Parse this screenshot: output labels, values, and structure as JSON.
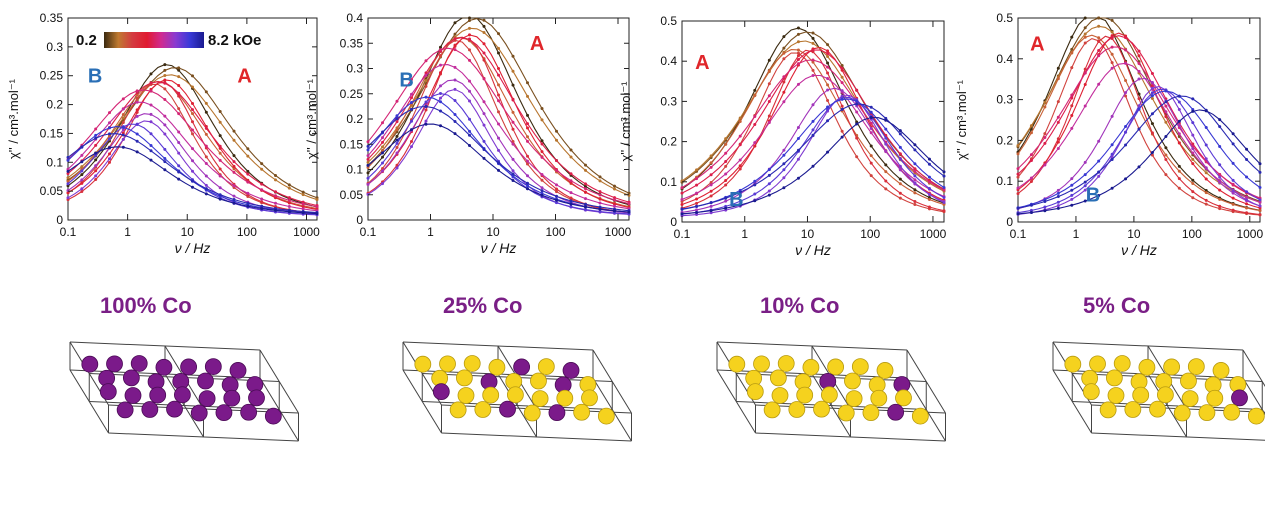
{
  "colorbar": {
    "min_label": "0.2",
    "max_label": "8.2 kOe",
    "gradient": [
      "#3a2a10",
      "#c07a30",
      "#d43a40",
      "#e01a30",
      "#d02a90",
      "#8a3ad0",
      "#3a3ad8",
      "#1a1a90"
    ]
  },
  "label_colors": {
    "A": "#e0262a",
    "B": "#2a6fb6",
    "title": "#7a1f86",
    "co": "#7b1a8a",
    "y": "#f5d21e"
  },
  "xlabel": "ν / Hz",
  "ylabel": "χ'' / cm³.mol⁻¹",
  "chart_data": [
    {
      "type": "line",
      "xlim": [
        0.1,
        1500
      ],
      "xscale": "log",
      "xticks": [
        "0.1",
        "1",
        "10",
        "100",
        "1000"
      ],
      "ylim": [
        0,
        0.35
      ],
      "yticks": [
        "0",
        "0.05",
        "0.1",
        "0.15",
        "0.2",
        "0.25",
        "0.3",
        "0.35"
      ],
      "annotations": {
        "A": "A",
        "B": "B"
      },
      "peak_A": {
        "x": 4.5,
        "y": 0.25
      },
      "peak_B": {
        "x": 0.55,
        "y": 0.22
      },
      "n_curves": 16
    },
    {
      "type": "line",
      "xlim": [
        0.1,
        1500
      ],
      "xscale": "log",
      "xticks": [
        "0.1",
        "1",
        "10",
        "100",
        "1000"
      ],
      "ylim": [
        0,
        0.4
      ],
      "yticks": [
        "0",
        "0.05",
        "0.1",
        "0.15",
        "0.2",
        "0.25",
        "0.3",
        "0.35",
        "0.4"
      ],
      "annotations": {
        "A": "A",
        "B": "B"
      },
      "peak_A": {
        "x": 4.0,
        "y": 0.38
      },
      "peak_B": {
        "x": 0.8,
        "y": 0.25
      },
      "n_curves": 16
    },
    {
      "type": "line",
      "xlim": [
        0.1,
        1500
      ],
      "xscale": "log",
      "xticks": [
        "0.1",
        "1",
        "10",
        "100",
        "1000"
      ],
      "ylim": [
        0,
        0.5
      ],
      "yticks": [
        "0",
        "0.1",
        "0.2",
        "0.3",
        "0.4",
        "0.5"
      ],
      "annotations": {
        "A": "A",
        "B": "B"
      },
      "peak_A": {
        "x": 7.0,
        "y": 0.45
      },
      "peak_B": {
        "x": 100,
        "y": 0.25
      },
      "n_curves": 16
    },
    {
      "type": "line",
      "xlim": [
        0.1,
        1500
      ],
      "xscale": "log",
      "xticks": [
        "0.1",
        "1",
        "10",
        "100",
        "1000"
      ],
      "ylim": [
        0,
        0.5
      ],
      "yticks": [
        "0",
        "0.1",
        "0.2",
        "0.3",
        "0.4",
        "0.5"
      ],
      "annotations": {
        "A": "A",
        "B": "B"
      },
      "peak_A": {
        "x": 2.0,
        "y": 0.48
      },
      "peak_B": {
        "x": 120,
        "y": 0.25
      },
      "n_curves": 16
    }
  ],
  "lattices": [
    {
      "title": "100% Co",
      "co_fraction": 1.0
    },
    {
      "title": "25% Co",
      "co_fraction": 0.25
    },
    {
      "title": "10% Co",
      "co_fraction": 0.1
    },
    {
      "title": "5% Co",
      "co_fraction": 0.05
    }
  ]
}
